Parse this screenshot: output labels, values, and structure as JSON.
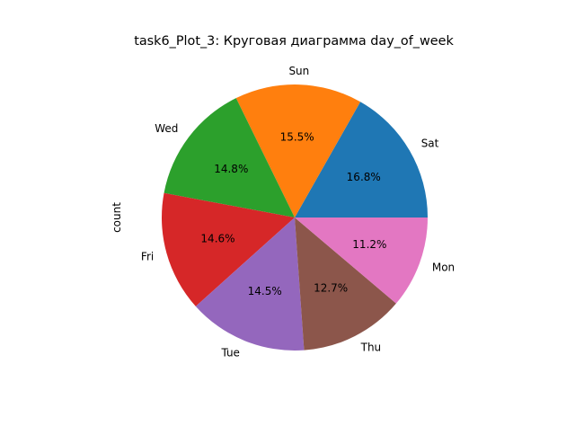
{
  "chart_data": {
    "type": "pie",
    "title": "task6_Plot_3: Круговая диаграмма day_of_week",
    "ylabel": "count",
    "slices": [
      {
        "label": "Sat",
        "percent": 16.8,
        "pct_label": "16.8%",
        "color": "#1f77b4"
      },
      {
        "label": "Sun",
        "percent": 15.5,
        "pct_label": "15.5%",
        "color": "#ff7f0e"
      },
      {
        "label": "Wed",
        "percent": 14.8,
        "pct_label": "14.8%",
        "color": "#2ca02c"
      },
      {
        "label": "Fri",
        "percent": 14.6,
        "pct_label": "14.6%",
        "color": "#d62728"
      },
      {
        "label": "Tue",
        "percent": 14.5,
        "pct_label": "14.5%",
        "color": "#9467bd"
      },
      {
        "label": "Thu",
        "percent": 12.7,
        "pct_label": "12.7%",
        "color": "#8c564b"
      },
      {
        "label": "Mon",
        "percent": 11.2,
        "pct_label": "11.2%",
        "color": "#e377c2"
      }
    ],
    "start_angle_deg": 0,
    "direction": "counterclockwise"
  }
}
